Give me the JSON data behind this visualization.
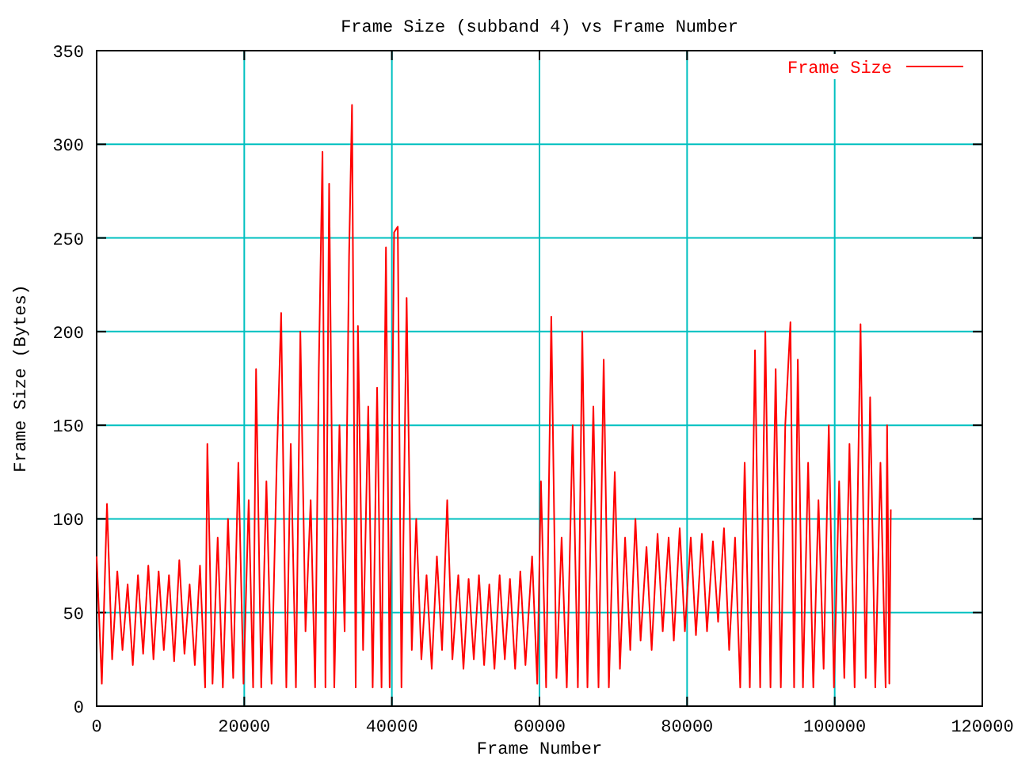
{
  "chart_data": {
    "type": "line",
    "title": "Frame Size (subband 4) vs Frame Number",
    "xlabel": "Frame Number",
    "ylabel": "Frame Size (Bytes)",
    "xlim": [
      0,
      120000
    ],
    "xticks": [
      0,
      20000,
      40000,
      60000,
      80000,
      100000,
      120000
    ],
    "ylim": [
      0,
      350
    ],
    "yticks": [
      0,
      50,
      100,
      150,
      200,
      250,
      300,
      350
    ],
    "grid": true,
    "legend": "top right",
    "marker": "none",
    "line_style": "solid",
    "series": [
      {
        "name": "Frame Size",
        "color": "#ff0000",
        "x": [
          0,
          700,
          1400,
          2100,
          2800,
          3500,
          4200,
          4900,
          5600,
          6300,
          7000,
          7700,
          8400,
          9100,
          9800,
          10500,
          11200,
          11900,
          12600,
          13300,
          14000,
          14700,
          15000,
          15700,
          16400,
          17100,
          17800,
          18500,
          19200,
          19900,
          20600,
          21200,
          21600,
          22300,
          23000,
          23700,
          24400,
          25000,
          25700,
          26300,
          27000,
          27600,
          28300,
          29000,
          29600,
          30100,
          30600,
          31000,
          31500,
          32200,
          32900,
          33600,
          34200,
          34600,
          35100,
          35400,
          36100,
          36800,
          37400,
          38000,
          38600,
          39200,
          39700,
          40300,
          40800,
          41300,
          42000,
          42700,
          43300,
          44000,
          44700,
          45400,
          46100,
          46800,
          47500,
          48200,
          49000,
          49700,
          50400,
          51100,
          51800,
          52500,
          53200,
          53900,
          54600,
          55300,
          56000,
          56700,
          57400,
          58100,
          59000,
          59700,
          60200,
          60900,
          61600,
          62300,
          63000,
          63700,
          64500,
          65200,
          65800,
          66500,
          67300,
          68000,
          68700,
          69400,
          70200,
          70900,
          71600,
          72300,
          73000,
          73700,
          74500,
          75200,
          76000,
          76700,
          77500,
          78200,
          79000,
          79700,
          80500,
          81200,
          82000,
          82700,
          83500,
          84200,
          85000,
          85700,
          86500,
          87200,
          87800,
          88500,
          89200,
          89900,
          90600,
          91300,
          92000,
          92700,
          93300,
          94000,
          94500,
          95000,
          95700,
          96400,
          97100,
          97800,
          98500,
          99200,
          99900,
          100600,
          101300,
          102000,
          102700,
          103500,
          104200,
          104800,
          105500,
          106200,
          106900,
          107100,
          107400,
          107600
        ],
        "values": [
          80,
          12,
          108,
          25,
          72,
          30,
          65,
          22,
          70,
          28,
          75,
          25,
          72,
          30,
          70,
          24,
          78,
          28,
          65,
          22,
          75,
          10,
          140,
          12,
          90,
          10,
          100,
          15,
          130,
          12,
          110,
          10,
          180,
          10,
          120,
          12,
          130,
          210,
          10,
          140,
          10,
          200,
          40,
          110,
          10,
          180,
          296,
          10,
          279,
          10,
          150,
          40,
          240,
          321,
          10,
          203,
          30,
          160,
          10,
          170,
          10,
          245,
          10,
          253,
          256,
          10,
          218,
          30,
          100,
          25,
          70,
          20,
          80,
          30,
          110,
          25,
          70,
          20,
          68,
          25,
          70,
          22,
          65,
          20,
          70,
          25,
          68,
          20,
          72,
          22,
          80,
          12,
          120,
          10,
          208,
          15,
          90,
          10,
          150,
          10,
          200,
          10,
          160,
          10,
          185,
          10,
          125,
          20,
          90,
          30,
          100,
          35,
          85,
          30,
          92,
          40,
          90,
          35,
          95,
          40,
          90,
          38,
          92,
          40,
          88,
          45,
          95,
          30,
          90,
          10,
          130,
          10,
          190,
          10,
          200,
          10,
          180,
          10,
          150,
          205,
          10,
          185,
          10,
          130,
          10,
          110,
          20,
          150,
          10,
          120,
          15,
          140,
          10,
          204,
          15,
          165,
          10,
          130,
          10,
          150,
          12,
          105
        ]
      }
    ]
  }
}
